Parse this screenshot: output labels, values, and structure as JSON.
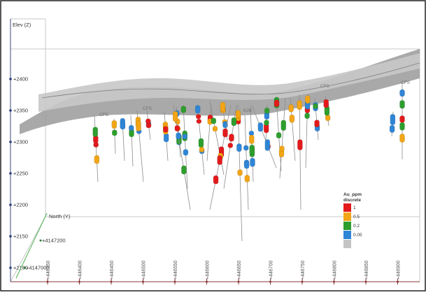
{
  "scene": {
    "elev_axis": {
      "title": "Elev (Z)",
      "ticks": [
        "+2400",
        "+2350",
        "+2300",
        "+2250",
        "+2200",
        "+2150",
        "+2100"
      ]
    },
    "north_axis": {
      "title": "North (Y)",
      "ticks": [
        "+4147200",
        "+4147000"
      ]
    },
    "east_ticks": [
      "+446350",
      "+446400",
      "+446450",
      "+446500",
      "+446550",
      "+446600",
      "+446650",
      "+446700",
      "+446750",
      "+446800",
      "+446850",
      "+446900"
    ],
    "drillhole_labels": [
      "CFS",
      "CFS",
      "K28",
      "CFS",
      "CFS"
    ],
    "legend": {
      "title_line1": "Au_ppm",
      "title_line2": "discrete",
      "items": [
        {
          "label": "1",
          "color": "#e31a1c"
        },
        {
          "label": "0.5",
          "color": "#f2a516"
        },
        {
          "label": "0.2",
          "color": "#2e9e2e"
        },
        {
          "label": "0.05",
          "color": "#2f86d6"
        },
        {
          "label": "",
          "color": "#c4c4c4"
        }
      ]
    }
  }
}
